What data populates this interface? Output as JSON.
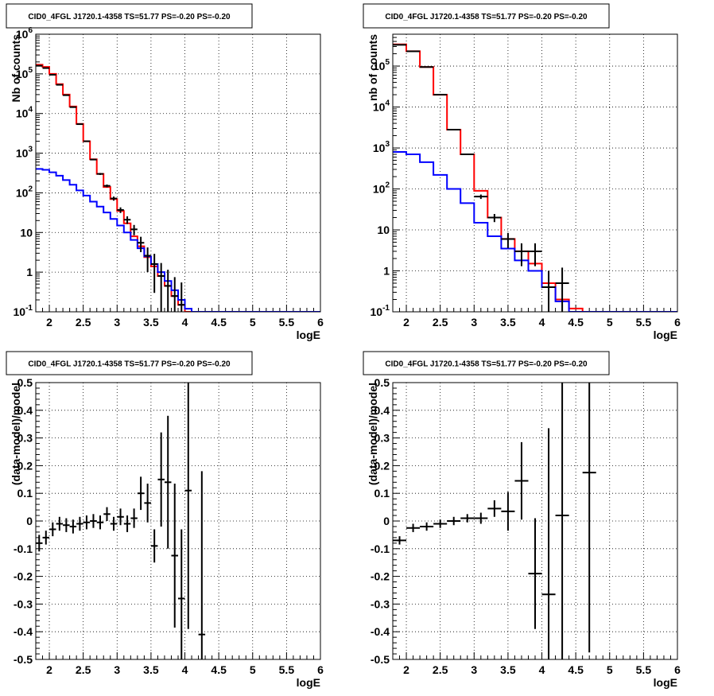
{
  "colors": {
    "data": "#000000",
    "total_model": "#ff0000",
    "component_model": "#0000ff",
    "grid": "#000000",
    "background": "#ffffff"
  },
  "chart_data": [
    {
      "type": "line",
      "title": "CID0_4FGL J1720.1-4358 TS=51.77 PS=-0.20 PS=-0.20",
      "xlabel": "logE",
      "ylabel": "Nb of counts",
      "xlim": [
        1.8,
        6.0
      ],
      "ylim": [
        0.1,
        1000000
      ],
      "yscale": "log",
      "grid": true,
      "xticks": [
        "2",
        "2.5",
        "3",
        "3.5",
        "4",
        "4.5",
        "5",
        "5.5",
        "6"
      ],
      "yticks": [
        "10^-1",
        "1",
        "10",
        "10^2",
        "10^3",
        "10^4",
        "10^5",
        "10^6"
      ],
      "bin_width": 0.1,
      "bin_edges_start": 1.8,
      "series": [
        {
          "kind": "step",
          "color": "total_model",
          "values": [
            170000,
            150000,
            100000,
            55000,
            30000,
            15000,
            5500,
            2000,
            700,
            300,
            140,
            70,
            35,
            17,
            8,
            4.5,
            2.4,
            1.4,
            0.8,
            0.45,
            0.25,
            0.15,
            0.1,
            0.1,
            0.1,
            0.1,
            0.1,
            0.1,
            0.1,
            0.1,
            0.1,
            0.1,
            0.1,
            0.1,
            0.1,
            0.1,
            0.1,
            0.1,
            0.1,
            0.1,
            0.1,
            0.1
          ]
        },
        {
          "kind": "step",
          "color": "component_model",
          "values": [
            400,
            380,
            330,
            270,
            210,
            160,
            115,
            85,
            60,
            45,
            32,
            22,
            15,
            10,
            6.5,
            4,
            2.5,
            1.6,
            1,
            0.6,
            0.35,
            0.2,
            0.12,
            0.1,
            0.1,
            0.1,
            0.1,
            0.1,
            0.1,
            0.1,
            0.1,
            0.1,
            0.1,
            0.1,
            0.1,
            0.1,
            0.1,
            0.1,
            0.1,
            0.1,
            0.1,
            0.1
          ]
        },
        {
          "kind": "errorbar",
          "color": "data",
          "x": [
            1.85,
            1.95,
            2.05,
            2.15,
            2.25,
            2.35,
            2.45,
            2.55,
            2.65,
            2.75,
            2.85,
            2.95,
            3.05,
            3.15,
            3.25,
            3.35,
            3.45,
            3.55,
            3.65,
            3.75,
            3.85,
            3.95,
            4.05,
            4.15,
            4.25,
            4.35,
            4.45,
            4.55,
            4.65,
            4.75
          ],
          "y": [
            160000,
            140000,
            95000,
            53000,
            29000,
            14500,
            5400,
            2000,
            690,
            300,
            150,
            72,
            37,
            21,
            12,
            5.5,
            2.6,
            1.6,
            0.8,
            0.45,
            0.25,
            0.15,
            0.1,
            0.1,
            0.1,
            0.1,
            0.1,
            0.1,
            0.1,
            0.1
          ],
          "y_err": [
            400,
            380,
            300,
            230,
            170,
            120,
            74,
            45,
            26,
            17,
            12,
            8.5,
            6,
            4.6,
            3.5,
            2.3,
            1.6,
            1.3,
            0.9,
            0.7,
            0.5,
            0.4,
            0.3,
            0.3,
            0.3,
            0.3,
            0.3,
            0.3,
            0.3,
            0.3
          ]
        }
      ]
    },
    {
      "type": "line",
      "title": "CID0_4FGL J1720.1-4358 TS=51.77 PS=-0.20 PS=-0.20",
      "xlabel": "logE",
      "ylabel": "nb of counts",
      "xlim": [
        1.8,
        6.0
      ],
      "ylim": [
        0.1,
        600000
      ],
      "yscale": "log",
      "grid": true,
      "xticks": [
        "2",
        "2.5",
        "3",
        "3.5",
        "4",
        "4.5",
        "5",
        "5.5",
        "6"
      ],
      "yticks": [
        "10^-1",
        "1",
        "10",
        "10^2",
        "10^3",
        "10^4",
        "10^5"
      ],
      "bin_width": 0.2,
      "bin_edges_start": 1.8,
      "series": [
        {
          "kind": "step",
          "color": "total_model",
          "values": [
            340000,
            230000,
            95000,
            20000,
            2800,
            700,
            90,
            20,
            6,
            3,
            1.5,
            0.5,
            0.2,
            0.12,
            0.1,
            0.1,
            0.1,
            0.1,
            0.1,
            0.1,
            0.1
          ]
        },
        {
          "kind": "step",
          "color": "component_model",
          "values": [
            800,
            700,
            450,
            220,
            100,
            45,
            15,
            7,
            3.5,
            1.8,
            1,
            0.4,
            0.18,
            0.1,
            0.1,
            0.1,
            0.1,
            0.1,
            0.1,
            0.1,
            0.1
          ]
        },
        {
          "kind": "errorbar",
          "color": "data",
          "x": [
            1.9,
            2.1,
            2.3,
            2.5,
            2.7,
            2.9,
            3.1,
            3.3,
            3.5,
            3.7,
            3.9,
            4.1,
            4.3,
            4.5,
            4.7,
            4.9,
            5.1,
            5.3,
            5.5,
            5.7,
            5.9
          ],
          "y": [
            330000,
            230000,
            95000,
            20000,
            2800,
            700,
            65,
            20,
            6,
            3,
            3,
            0.4,
            0.5,
            0.1,
            0.1,
            0.1,
            0.1,
            0.1,
            0.1,
            0.1,
            0.1
          ],
          "y_err": [
            570,
            480,
            310,
            140,
            53,
            26,
            8,
            4.5,
            2.4,
            1.7,
            1.7,
            0.6,
            0.7,
            0.3,
            0.3,
            0.3,
            0.3,
            0.3,
            0.3,
            0.3,
            0.3
          ]
        }
      ]
    },
    {
      "type": "scatter",
      "title": "CID0_4FGL J1720.1-4358 TS=51.77 PS=-0.20 PS=-0.20",
      "xlabel": "logE",
      "ylabel": "(data-model)/model",
      "xlim": [
        1.8,
        6.0
      ],
      "ylim": [
        -0.5,
        0.5
      ],
      "grid": true,
      "xticks": [
        "2",
        "2.5",
        "3",
        "3.5",
        "4",
        "4.5",
        "5",
        "5.5",
        "6"
      ],
      "yticks": [
        "-0.5",
        "-0.4",
        "-0.3",
        "-0.2",
        "-0.1",
        "0",
        "0.1",
        "0.2",
        "0.3",
        "0.4",
        "0.5"
      ],
      "x_halfwidth": 0.05,
      "series": [
        {
          "kind": "errorbar",
          "color": "data",
          "x": [
            1.85,
            1.95,
            2.05,
            2.15,
            2.25,
            2.35,
            2.45,
            2.55,
            2.65,
            2.75,
            2.85,
            2.95,
            3.05,
            3.15,
            3.25,
            3.35,
            3.45,
            3.55,
            3.65,
            3.75,
            3.85,
            3.95,
            4.05,
            4.25
          ],
          "y": [
            -0.08,
            -0.06,
            -0.03,
            -0.01,
            -0.015,
            -0.02,
            -0.01,
            -0.005,
            0.0,
            -0.005,
            0.025,
            -0.01,
            0.015,
            -0.01,
            0.01,
            0.1,
            0.065,
            -0.09,
            0.15,
            0.14,
            -0.125,
            -0.28,
            0.11,
            -0.41
          ],
          "y_err": [
            0.03,
            0.025,
            0.025,
            0.025,
            0.025,
            0.025,
            0.025,
            0.025,
            0.025,
            0.025,
            0.025,
            0.025,
            0.03,
            0.03,
            0.035,
            0.06,
            0.07,
            0.06,
            0.17,
            0.24,
            0.26,
            0.25,
            0.5,
            0.59
          ]
        }
      ]
    },
    {
      "type": "scatter",
      "title": "CID0_4FGL J1720.1-4358 TS=51.77 PS=-0.20 PS=-0.20",
      "xlabel": "logE",
      "ylabel": "(data-model)/model",
      "xlim": [
        1.8,
        6.0
      ],
      "ylim": [
        -0.5,
        0.5
      ],
      "grid": true,
      "xticks": [
        "2",
        "2.5",
        "3",
        "3.5",
        "4",
        "4.5",
        "5",
        "5.5",
        "6"
      ],
      "yticks": [
        "-0.5",
        "-0.4",
        "-0.3",
        "-0.2",
        "-0.1",
        "0",
        "0.1",
        "0.2",
        "0.3",
        "0.4",
        "0.5"
      ],
      "x_halfwidth": 0.1,
      "series": [
        {
          "kind": "errorbar",
          "color": "data",
          "x": [
            1.9,
            2.1,
            2.3,
            2.5,
            2.7,
            2.9,
            3.1,
            3.3,
            3.5,
            3.7,
            3.9,
            4.1,
            4.3,
            4.7
          ],
          "y": [
            -0.07,
            -0.025,
            -0.02,
            -0.01,
            0.0,
            0.01,
            0.01,
            0.045,
            0.035,
            0.145,
            -0.19,
            -0.265,
            0.02,
            0.175
          ],
          "y_err": [
            0.015,
            0.015,
            0.015,
            0.015,
            0.015,
            0.015,
            0.02,
            0.03,
            0.07,
            0.14,
            0.2,
            0.6,
            0.6,
            0.65
          ]
        }
      ]
    }
  ]
}
